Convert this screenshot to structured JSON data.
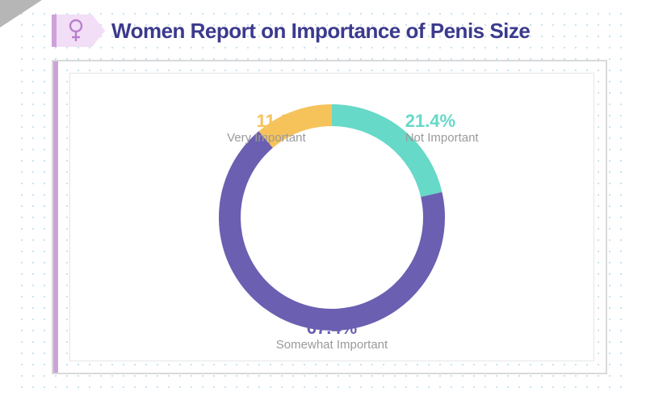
{
  "title": {
    "text": "Women Report on Importance of Penis Size",
    "color": "#3b3a8d",
    "fontsize": 26
  },
  "icon": {
    "name": "female-symbol",
    "color": "#b97fcb"
  },
  "chart": {
    "type": "donut",
    "outer_radius": 140,
    "inner_radius": 113,
    "start_angle_deg": 0,
    "background_color": "#ffffff",
    "segments": [
      {
        "key": "not_important",
        "label": "Not Important",
        "value": 21.4,
        "display": "21.4%",
        "color": "#66d9c8"
      },
      {
        "key": "somewhat_important",
        "label": "Somewhat Important",
        "value": 67.4,
        "display": "67.4%",
        "color": "#6a5fb1"
      },
      {
        "key": "very_important",
        "label": "Very Important",
        "value": 11.2,
        "display": "11.2%",
        "color": "#f6c35b"
      }
    ],
    "label_fontsize_pct": 22,
    "label_fontsize_name": 15,
    "label_name_color": "#9a9a9a"
  },
  "panel": {
    "border_color": "#d9d9d9",
    "accent_color": "#cda2da",
    "dot_color": "#c8e3f0"
  }
}
